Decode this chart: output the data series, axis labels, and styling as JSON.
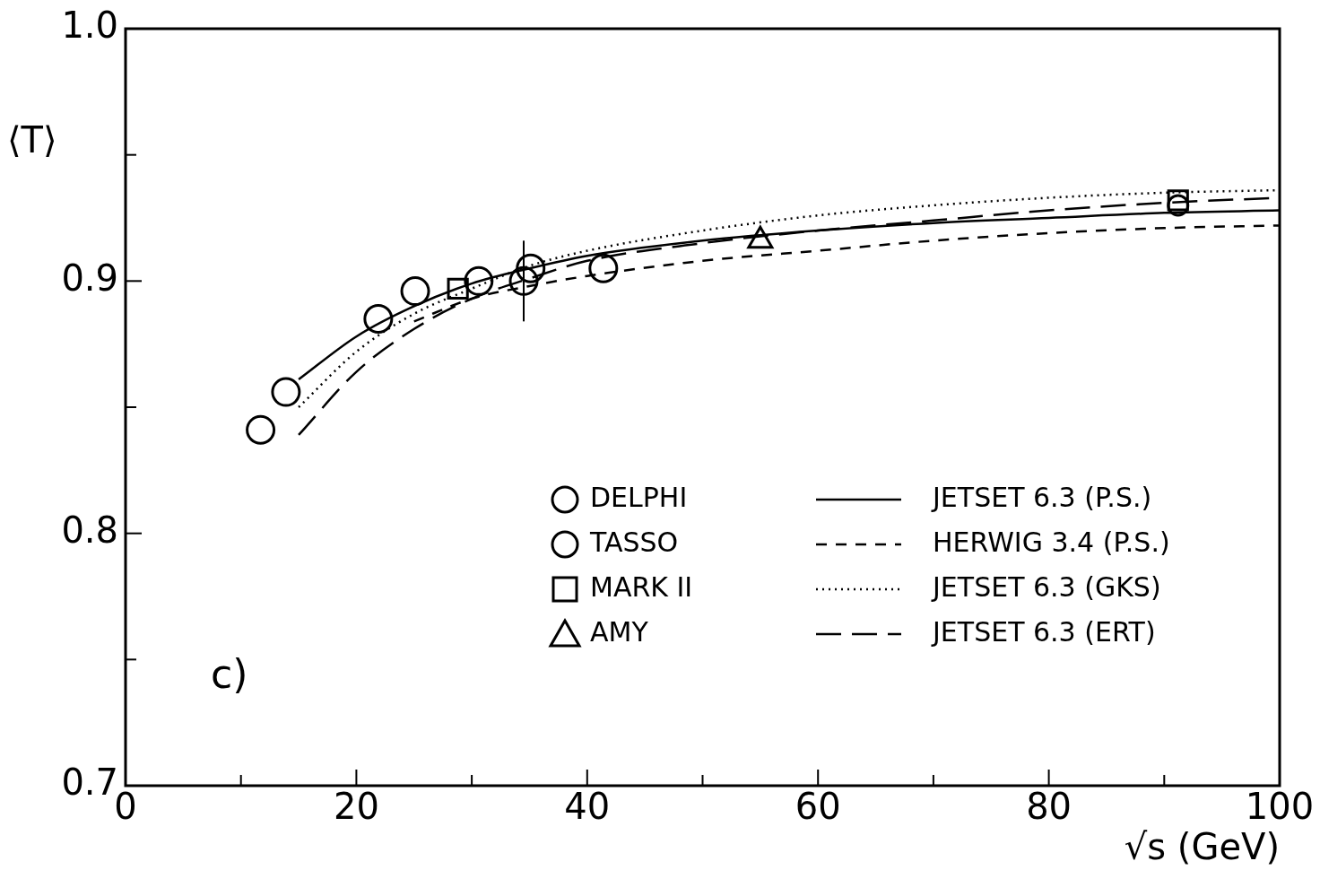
{
  "chart_data": {
    "type": "scatter",
    "xlabel": "√s (GeV)",
    "ylabel": "⟨T⟩",
    "annotations": [
      "c)"
    ],
    "xlim": [
      0,
      100
    ],
    "xticks": [
      0,
      {
        "value": 10,
        "label": null
      },
      20,
      {
        "value": 30,
        "label": null
      },
      40,
      {
        "value": 50,
        "label": null
      },
      60,
      {
        "value": 70,
        "label": null
      },
      80,
      {
        "value": 90,
        "label": null
      },
      100
    ],
    "ylim": [
      0.7,
      1.0
    ],
    "yticks": [
      0.7,
      {
        "value": 0.75,
        "label": null
      },
      0.8,
      {
        "value": 0.85,
        "label": null
      },
      0.9,
      {
        "value": 0.95,
        "label": null
      },
      {
        "value": 1,
        "label": "1.0"
      }
    ],
    "grid": false,
    "legend": "bottom right",
    "series": [
      {
        "name": "DELPHI",
        "marker": "circle",
        "color": "#000000",
        "x": [
          91.2
        ],
        "values": [
          0.93
        ]
      },
      {
        "name": "TASSO",
        "marker": "circle",
        "color": "#000000",
        "x": [
          11.7,
          13.9,
          21.9,
          25.1,
          30.6,
          34.5,
          35.1,
          41.4
        ],
        "values": [
          0.841,
          0.856,
          0.885,
          0.896,
          0.9,
          0.9,
          0.905,
          0.905
        ],
        "errors": [
          null,
          null,
          null,
          null,
          null,
          0.016,
          null,
          null
        ]
      },
      {
        "name": "MARK II",
        "marker": "square",
        "color": "#000000",
        "x": [
          28.8,
          91.2
        ],
        "values": [
          0.897,
          0.932
        ]
      },
      {
        "name": "AMY",
        "marker": "triangle",
        "color": "#000000",
        "x": [
          55
        ],
        "values": [
          0.916
        ]
      },
      {
        "name": "JETSET 6.3 (P.S.)",
        "type": "line",
        "line_style": "solid",
        "color": "#000000",
        "x": [
          15,
          20,
          25,
          30,
          35,
          40,
          50,
          60,
          70,
          80,
          90,
          100
        ],
        "values": [
          0.861,
          0.878,
          0.89,
          0.899,
          0.905,
          0.91,
          0.916,
          0.92,
          0.923,
          0.925,
          0.927,
          0.928
        ]
      },
      {
        "name": "HERWIG 3.4 (P.S.)",
        "type": "line",
        "line_style": "dashed",
        "color": "#000000",
        "x": [
          25,
          30,
          35,
          40,
          50,
          60,
          70,
          80,
          90,
          100
        ],
        "values": [
          0.884,
          0.893,
          0.898,
          0.902,
          0.908,
          0.912,
          0.916,
          0.919,
          0.921,
          0.922
        ]
      },
      {
        "name": "JETSET 6.3 (GKS)",
        "type": "line",
        "line_style": "dotted",
        "color": "#000000",
        "x": [
          15,
          20,
          25,
          30,
          35,
          40,
          50,
          60,
          70,
          80,
          90,
          100
        ],
        "values": [
          0.85,
          0.872,
          0.887,
          0.897,
          0.906,
          0.912,
          0.92,
          0.926,
          0.93,
          0.933,
          0.935,
          0.936
        ]
      },
      {
        "name": "JETSET 6.3 (ERT)",
        "type": "line",
        "line_style": "longdash",
        "color": "#000000",
        "x": [
          15,
          20,
          25,
          30,
          35,
          40,
          50,
          60,
          70,
          80,
          90,
          100
        ],
        "values": [
          0.839,
          0.864,
          0.881,
          0.893,
          0.901,
          0.908,
          0.915,
          0.92,
          0.924,
          0.928,
          0.931,
          0.933
        ]
      }
    ]
  }
}
